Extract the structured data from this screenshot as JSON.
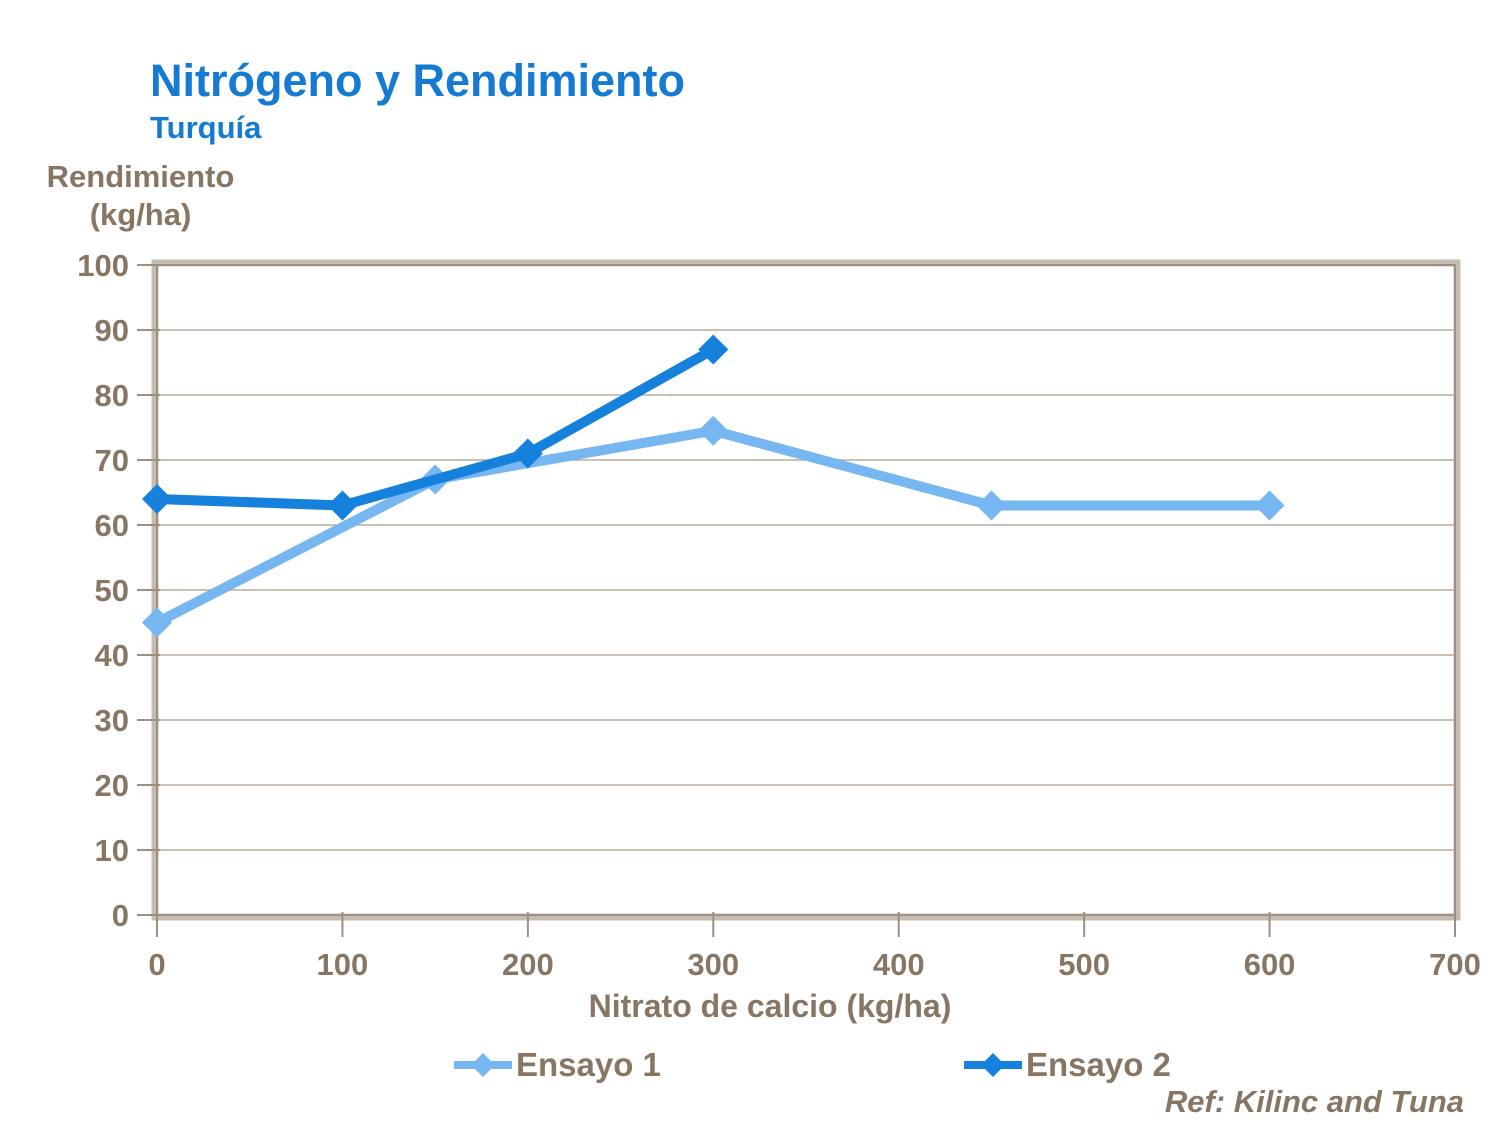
{
  "title": "Nitrógeno y Rendimiento",
  "subtitle": "Turquía",
  "y_axis_title_line1": "Rendimiento",
  "y_axis_title_line2": "(kg/ha)",
  "x_axis_title": "Nitrato de calcio (kg/ha)",
  "ref_text": "Ref: Kilinc and Tuna",
  "colors": {
    "title_blue": "#147ad2",
    "text_brown": "#877663",
    "gridline": "#b9ac9d",
    "frame_light": "#c6bcb2",
    "frame_dark": "#9c9083",
    "tick": "#9c9083",
    "series1_light_blue": "#76b7f2",
    "series2_dark_blue": "#1680dd",
    "background": "#ffffff"
  },
  "chart_data": {
    "type": "line",
    "title": "Nitrógeno y Rendimiento",
    "subtitle": "Turquía",
    "xlabel": "Nitrato de calcio (kg/ha)",
    "ylabel": "Rendimiento (kg/ha)",
    "xlim": [
      0,
      700
    ],
    "ylim": [
      0,
      100
    ],
    "x_ticks": [
      0,
      100,
      200,
      300,
      400,
      500,
      600,
      700
    ],
    "y_ticks": [
      0,
      10,
      20,
      30,
      40,
      50,
      60,
      70,
      80,
      90,
      100
    ],
    "grid": "horizontal-only",
    "legend_position": "bottom",
    "marker": "diamond",
    "series": [
      {
        "name": "Ensayo 1",
        "color": "#76b7f2",
        "points": [
          [
            0,
            45
          ],
          [
            150,
            67
          ],
          [
            300,
            74.5
          ],
          [
            450,
            63
          ],
          [
            600,
            63
          ]
        ]
      },
      {
        "name": "Ensayo 2",
        "color": "#1680dd",
        "points": [
          [
            0,
            64
          ],
          [
            100,
            63
          ],
          [
            200,
            71
          ],
          [
            300,
            87
          ]
        ]
      }
    ],
    "annotations": [
      "Ref: Kilinc and Tuna"
    ]
  }
}
